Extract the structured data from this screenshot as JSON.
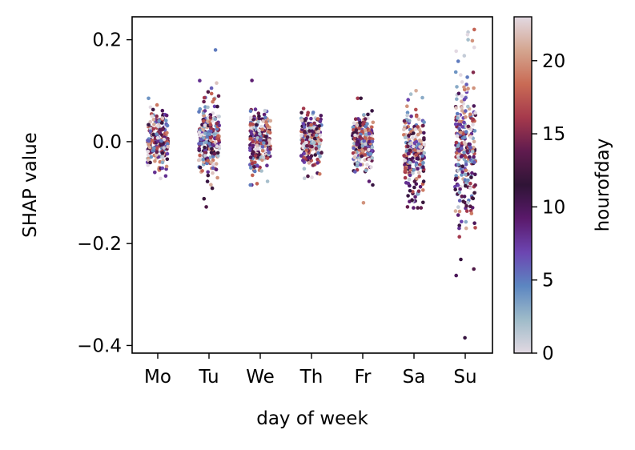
{
  "chart_data": {
    "type": "scatter",
    "title": "",
    "xlabel": "day of week",
    "ylabel": "SHAP value",
    "categories": [
      "Mo",
      "Tu",
      "We",
      "Th",
      "Fr",
      "Sa",
      "Su"
    ],
    "ylim": [
      -0.415,
      0.245
    ],
    "yticks": [
      {
        "value": 0.2,
        "label": "0.2"
      },
      {
        "value": 0.0,
        "label": "0.0"
      },
      {
        "value": -0.2,
        "label": "−0.2"
      },
      {
        "value": -0.4,
        "label": "−0.4"
      }
    ],
    "grid": false,
    "jitter": 0.4,
    "color_variable": "hourofday",
    "colorbar": {
      "label": "hourofday",
      "range": [
        0,
        23
      ],
      "ticks": [
        {
          "value": 0,
          "label": "0"
        },
        {
          "value": 5,
          "label": "5"
        },
        {
          "value": 10,
          "label": "10"
        },
        {
          "value": 15,
          "label": "15"
        },
        {
          "value": 20,
          "label": "20"
        }
      ],
      "colormap": "twilight_shifted",
      "stops": [
        "#e2d9e2",
        "#9ebbc9",
        "#5c86c1",
        "#6c45b1",
        "#5a196b",
        "#2f1436",
        "#5f1b4e",
        "#a5394c",
        "#c96b55",
        "#d4a58f",
        "#e2d9e2"
      ]
    },
    "series": [
      {
        "name": "Mo",
        "count": 220,
        "center": 0.005,
        "spread": 0.028,
        "min": -0.08,
        "max": 0.085,
        "outliers": []
      },
      {
        "name": "Tu",
        "count": 230,
        "center": 0.008,
        "spread": 0.032,
        "min": -0.13,
        "max": 0.18,
        "outliers": [
          {
            "y": 0.18,
            "hour": 5
          },
          {
            "y": -0.128,
            "hour": 13
          },
          {
            "y": -0.112,
            "hour": 12
          },
          {
            "y": 0.115,
            "hour": 22
          },
          {
            "y": 0.105,
            "hour": 6
          }
        ]
      },
      {
        "name": "We",
        "count": 220,
        "center": 0.0,
        "spread": 0.03,
        "min": -0.085,
        "max": 0.12,
        "outliers": [
          {
            "y": 0.12,
            "hour": 9
          },
          {
            "y": -0.085,
            "hour": 5
          },
          {
            "y": -0.078,
            "hour": 2
          }
        ]
      },
      {
        "name": "Th",
        "count": 210,
        "center": 0.005,
        "spread": 0.025,
        "min": -0.075,
        "max": 0.065,
        "outliers": [
          {
            "y": -0.072,
            "hour": 1
          },
          {
            "y": -0.07,
            "hour": 0
          }
        ]
      },
      {
        "name": "Fr",
        "count": 230,
        "center": 0.0,
        "spread": 0.028,
        "min": -0.12,
        "max": 0.085,
        "outliers": [
          {
            "y": -0.12,
            "hour": 20
          },
          {
            "y": -0.085,
            "hour": 11
          },
          {
            "y": 0.085,
            "hour": 12
          }
        ]
      },
      {
        "name": "Sa",
        "count": 240,
        "center": -0.01,
        "spread": 0.04,
        "min": -0.13,
        "max": 0.1,
        "outliers": [
          {
            "y": -0.13,
            "hour": 14
          },
          {
            "y": -0.115,
            "hour": 12
          },
          {
            "y": 0.1,
            "hour": 21
          }
        ]
      },
      {
        "name": "Su",
        "count": 260,
        "center": -0.01,
        "spread": 0.07,
        "min": -0.39,
        "max": 0.22,
        "outliers": [
          {
            "y": -0.385,
            "hour": 11
          },
          {
            "y": -0.25,
            "hour": 13
          },
          {
            "y": 0.215,
            "hour": 1
          },
          {
            "y": 0.21,
            "hour": 0
          },
          {
            "y": 0.2,
            "hour": 2
          },
          {
            "y": 0.185,
            "hour": 0
          },
          {
            "y": -0.17,
            "hour": 8
          },
          {
            "y": -0.16,
            "hour": 10
          }
        ]
      }
    ]
  }
}
